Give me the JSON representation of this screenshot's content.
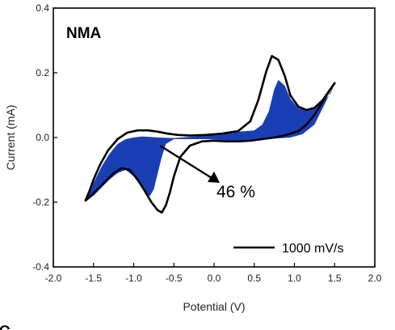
{
  "chart_data": {
    "type": "line",
    "panel_label": "NMA",
    "xlabel": "Potential (V)",
    "ylabel": "Current (mA)",
    "xlim": [
      -2.0,
      2.0
    ],
    "ylim": [
      -0.4,
      0.4
    ],
    "x_ticks": [
      "-2.0",
      "-1.5",
      "-1.0",
      "-0.5",
      "0.0",
      "0.5",
      "1.0",
      "1.5",
      "2.0"
    ],
    "y_ticks": [
      "0.4",
      "0.2",
      "0.0",
      "-0.2",
      "-0.4"
    ],
    "x_tick_values": [
      -2.0,
      -1.5,
      -1.0,
      -0.5,
      0.0,
      0.5,
      1.0,
      1.5,
      2.0
    ],
    "y_tick_values": [
      0.4,
      0.2,
      0.0,
      -0.2,
      -0.4
    ],
    "grid": false,
    "legend_position": "bottom-right",
    "legend_label": "1000 mV/s",
    "annotation": "46 %",
    "fill_color": "#1a3fb5",
    "line_color": "#000000",
    "series": [
      {
        "name": "1000 mV/s",
        "x": [
          -1.6,
          -1.55,
          -1.5,
          -1.42,
          -1.32,
          -1.2,
          -1.08,
          -0.95,
          -0.82,
          -0.7,
          -0.58,
          -0.45,
          -0.3,
          -0.1,
          0.1,
          0.3,
          0.45,
          0.55,
          0.65,
          0.72,
          0.8,
          0.88,
          0.95,
          1.05,
          1.15,
          1.25,
          1.35,
          1.42,
          1.5,
          1.45,
          1.35,
          1.25,
          1.15,
          1.05,
          0.9,
          0.75,
          0.6,
          0.45,
          0.3,
          0.15,
          0.0,
          -0.15,
          -0.3,
          -0.42,
          -0.5,
          -0.55,
          -0.6,
          -0.65,
          -0.7,
          -0.78,
          -0.85,
          -0.95,
          -1.05,
          -1.15,
          -1.25,
          -1.35,
          -1.45,
          -1.55,
          -1.6
        ],
        "y": [
          -0.195,
          -0.165,
          -0.13,
          -0.085,
          -0.04,
          -0.005,
          0.015,
          0.022,
          0.022,
          0.018,
          0.012,
          0.008,
          0.006,
          0.008,
          0.012,
          0.02,
          0.05,
          0.115,
          0.205,
          0.252,
          0.24,
          0.19,
          0.13,
          0.095,
          0.085,
          0.092,
          0.115,
          0.14,
          0.168,
          0.15,
          0.11,
          0.07,
          0.04,
          0.02,
          0.008,
          0.0,
          -0.005,
          -0.01,
          -0.012,
          -0.012,
          -0.01,
          -0.012,
          -0.025,
          -0.06,
          -0.12,
          -0.17,
          -0.21,
          -0.232,
          -0.225,
          -0.2,
          -0.17,
          -0.13,
          -0.1,
          -0.095,
          -0.11,
          -0.135,
          -0.16,
          -0.185,
          -0.195
        ]
      }
    ],
    "filled_region": {
      "x": [
        -1.6,
        -1.5,
        -1.4,
        -1.3,
        -1.2,
        -1.1,
        -1.0,
        -0.9,
        -0.8,
        -0.7,
        -0.5,
        -0.3,
        -0.1,
        0.1,
        0.3,
        0.5,
        0.6,
        0.68,
        0.75,
        0.8,
        0.88,
        0.95,
        1.05,
        1.15,
        1.25,
        1.35,
        1.45,
        1.5,
        1.45,
        1.35,
        1.25,
        1.1,
        0.95,
        0.85,
        0.75,
        0.65,
        0.5,
        0.3,
        0.1,
        -0.1,
        -0.3,
        -0.5,
        -0.6,
        -0.65,
        -0.7,
        -0.75,
        -0.8,
        -0.9,
        -1.0,
        -1.1,
        -1.2,
        -1.3,
        -1.4,
        -1.5,
        -1.6
      ],
      "y": [
        -0.195,
        -0.14,
        -0.09,
        -0.05,
        -0.02,
        -0.005,
        0.0,
        0.003,
        0.002,
        0.0,
        -0.002,
        0.002,
        0.006,
        0.012,
        0.018,
        0.022,
        0.04,
        0.08,
        0.15,
        0.178,
        0.16,
        0.12,
        0.09,
        0.085,
        0.092,
        0.11,
        0.135,
        0.168,
        0.14,
        0.09,
        0.04,
        0.01,
        0.0,
        -0.002,
        -0.003,
        -0.006,
        -0.008,
        -0.01,
        -0.008,
        -0.005,
        -0.005,
        -0.005,
        -0.02,
        -0.06,
        -0.11,
        -0.16,
        -0.182,
        -0.155,
        -0.12,
        -0.1,
        -0.11,
        -0.13,
        -0.155,
        -0.18,
        -0.195
      ]
    }
  }
}
